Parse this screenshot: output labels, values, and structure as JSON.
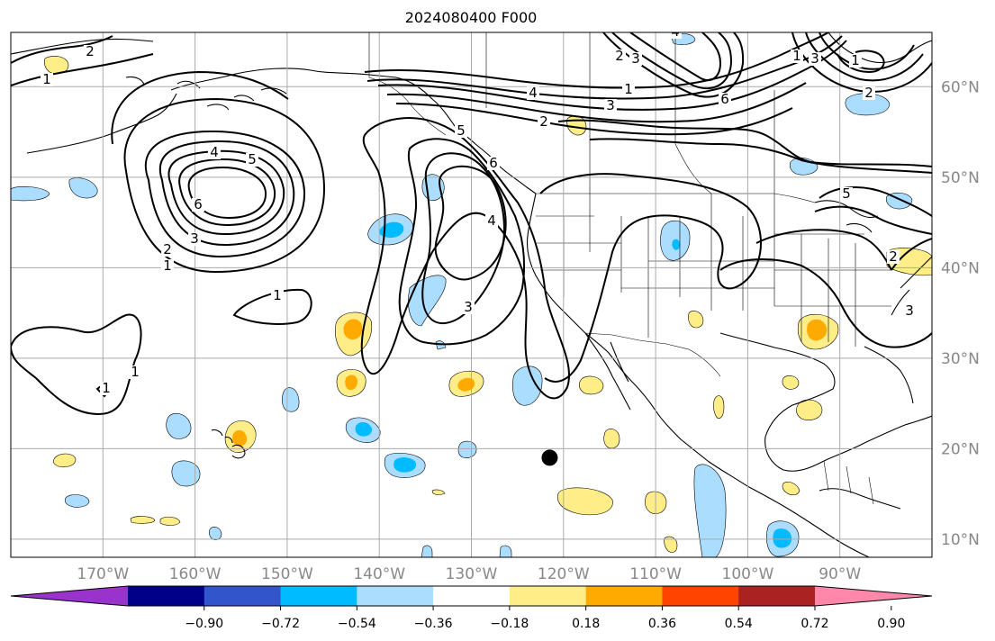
{
  "title": "2024080400 F000",
  "map": {
    "lon_range": [
      -180,
      -80
    ],
    "lat_range": [
      8,
      66
    ],
    "lon_ticks": [
      {
        "lon": -170,
        "label": "170°W"
      },
      {
        "lon": -160,
        "label": "160°W"
      },
      {
        "lon": -150,
        "label": "150°W"
      },
      {
        "lon": -140,
        "label": "140°W"
      },
      {
        "lon": -130,
        "label": "130°W"
      },
      {
        "lon": -120,
        "label": "120°W"
      },
      {
        "lon": -110,
        "label": "110°W"
      },
      {
        "lon": -100,
        "label": "100°W"
      },
      {
        "lon": -90,
        "label": "90°W"
      }
    ],
    "lat_ticks": [
      {
        "lat": 10,
        "label": "10°N"
      },
      {
        "lat": 20,
        "label": "20°N"
      },
      {
        "lat": 30,
        "label": "30°N"
      },
      {
        "lat": 40,
        "label": "40°N"
      },
      {
        "lat": 50,
        "label": "50°N"
      },
      {
        "lat": 60,
        "label": "60°N"
      }
    ],
    "grid": true,
    "marker": {
      "lon": -121.5,
      "lat": 19,
      "color": "#000000"
    }
  },
  "colorbar": {
    "colors": [
      "#9933cc",
      "#000088",
      "#3355cc",
      "#00bbff",
      "#aaddff",
      "#ffffff",
      "#ffee88",
      "#ffaa00",
      "#ff4400",
      "#aa2222",
      "#ff88aa"
    ],
    "ticks": [
      "−0.90",
      "−0.72",
      "−0.54",
      "−0.36",
      "−0.18",
      "0.18",
      "0.36",
      "0.54",
      "0.72",
      "0.90"
    ]
  },
  "contour_labels": [
    "1",
    "2",
    "3",
    "4",
    "5",
    "6",
    "1",
    "1",
    "1",
    "2",
    "3",
    "4",
    "5",
    "6",
    "2",
    "3",
    "4",
    "1",
    "2",
    "3",
    "4",
    "5",
    "6",
    "1",
    "2",
    "3",
    "1",
    "2",
    "3",
    "1"
  ],
  "colors": {
    "coast": "#000000",
    "grid": "#aaaaaa",
    "contour": "#000000"
  }
}
